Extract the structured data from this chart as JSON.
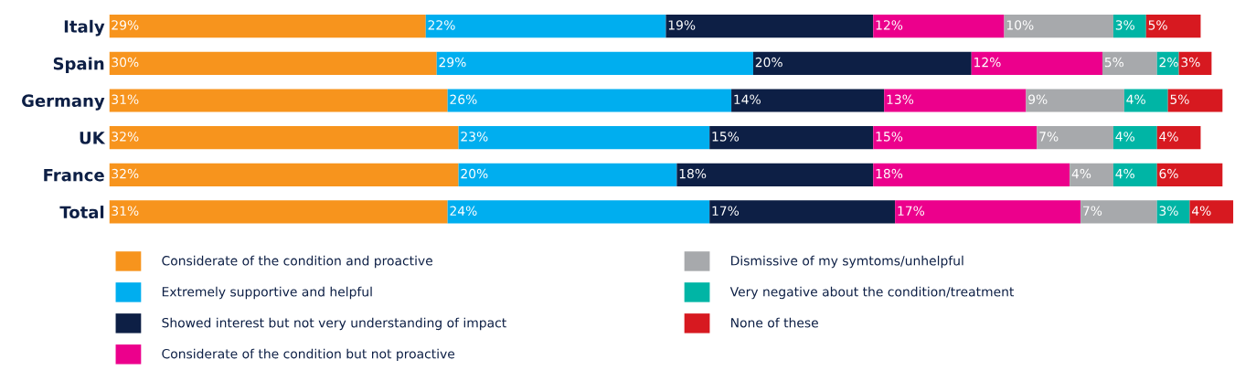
{
  "chart_data": {
    "type": "bar",
    "orientation": "horizontal",
    "stacked": true,
    "legend": "bottom",
    "grid": false,
    "tick_labels": "y",
    "categories": [
      "Italy",
      "Spain",
      "Germany",
      "UK",
      "France",
      "Total"
    ],
    "series": [
      {
        "name": "Considerate of the condition and proactive",
        "color": "#f7941d",
        "values": [
          29,
          30,
          31,
          32,
          32,
          31
        ],
        "value_labels": [
          "29%",
          "30%",
          "31%",
          "32%",
          "32%",
          "31%"
        ]
      },
      {
        "name": "Extremely supportive and helpful",
        "color": "#00aeef",
        "values": [
          22,
          29,
          26,
          23,
          20,
          24
        ],
        "value_labels": [
          "22%",
          "29%",
          "26%",
          "23%",
          "20%",
          "24%"
        ]
      },
      {
        "name": "Showed interest but not very understanding of impact",
        "color": "#0d1f45",
        "values": [
          19,
          20,
          14,
          15,
          18,
          17
        ],
        "value_labels": [
          "19%",
          "20%",
          "14%",
          "15%",
          "18%",
          "17%"
        ]
      },
      {
        "name": "Considerate of the condition but not proactive",
        "color": "#ec008c",
        "values": [
          12,
          12,
          13,
          15,
          18,
          17
        ],
        "value_labels": [
          "12%",
          "12%",
          "13%",
          "15%",
          "18%",
          "17%"
        ]
      },
      {
        "name": "Dismissive of my symtoms/unhelpful",
        "color": "#a7a9ac",
        "values": [
          10,
          5,
          9,
          7,
          4,
          7
        ],
        "value_labels": [
          "10%",
          "5%",
          "9%",
          "7%",
          "4%",
          "7%"
        ]
      },
      {
        "name": "Very negative about the condition/treatment",
        "color": "#00b5a5",
        "values": [
          3,
          2,
          4,
          4,
          4,
          3
        ],
        "value_labels": [
          "3%",
          "2%",
          "4%",
          "4%",
          "4%",
          "3%"
        ]
      },
      {
        "name": "None of these",
        "color": "#d71920",
        "values": [
          5,
          3,
          5,
          4,
          6,
          4
        ],
        "value_labels": [
          "5%",
          "3%",
          "5%",
          "4%",
          "6%",
          "4%"
        ]
      }
    ]
  }
}
